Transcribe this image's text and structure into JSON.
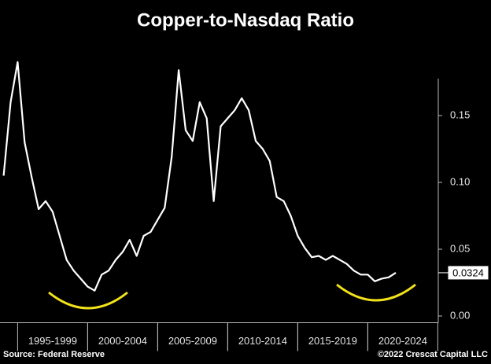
{
  "chart_data": {
    "type": "line",
    "title": "Copper-to-Nasdaq Ratio",
    "source": "Source: Federal Reserve",
    "copyright": "©2022 Crescat Capital LLC",
    "categories": [
      null,
      null,
      null,
      null,
      null,
      null,
      null,
      "1995-1999",
      null,
      null,
      null,
      null,
      null,
      null,
      null,
      null,
      null,
      "2000-2004",
      null,
      null,
      null,
      null,
      null,
      null,
      null,
      null,
      null,
      "2005-2009",
      null,
      null,
      null,
      null,
      null,
      null,
      null,
      null,
      null,
      "2010-2014",
      null,
      null,
      null,
      null,
      null,
      null,
      null,
      null,
      null,
      "2015-2019",
      null,
      null,
      null,
      null,
      null,
      null,
      null,
      null,
      null,
      "2020-2024",
      null,
      null,
      null
    ],
    "values": [
      0.105,
      0.16,
      0.19,
      0.13,
      0.104,
      0.08,
      0.086,
      0.078,
      0.06,
      0.042,
      0.034,
      0.028,
      0.022,
      0.019,
      0.031,
      0.034,
      0.042,
      0.048,
      0.057,
      0.045,
      0.06,
      0.063,
      0.072,
      0.081,
      0.119,
      0.184,
      0.139,
      0.131,
      0.16,
      0.148,
      0.086,
      0.142,
      0.148,
      0.154,
      0.163,
      0.154,
      0.131,
      0.125,
      0.116,
      0.089,
      0.086,
      0.075,
      0.06,
      0.051,
      0.044,
      0.045,
      0.042,
      0.045,
      0.042,
      0.039,
      0.034,
      0.031,
      0.031,
      0.026,
      0.028,
      0.029,
      0.0324,
      null,
      null,
      null,
      null
    ],
    "color": "#ffffff",
    "ylim": [
      -0.005,
      0.2
    ],
    "yticks": [
      {
        "value": 0,
        "label": "0.00"
      },
      0.05,
      {
        "value": 0.1,
        "label": "0.10"
      },
      0.15
    ],
    "y_axis_side": "right"
  }
}
